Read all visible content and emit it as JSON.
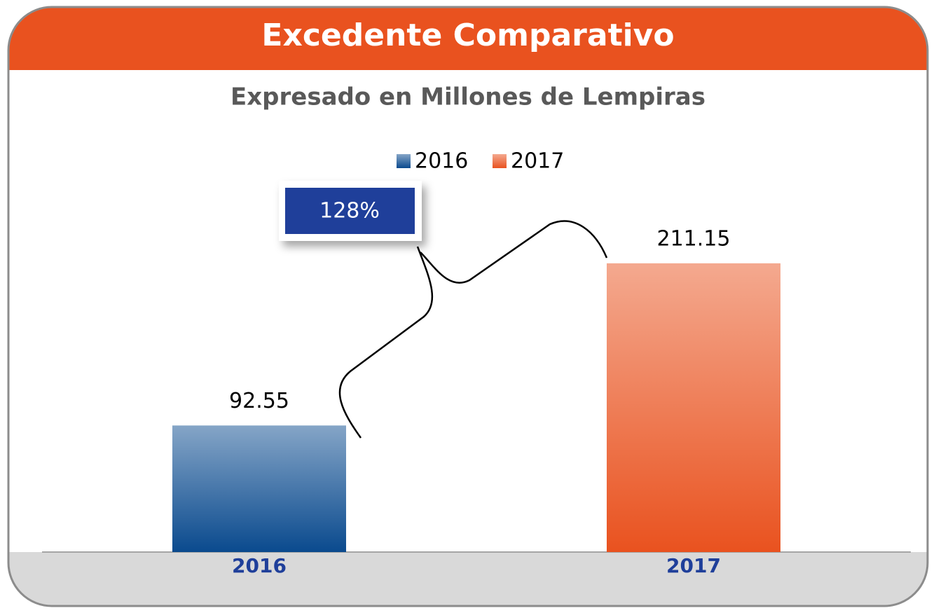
{
  "chart_data": {
    "type": "bar",
    "title": "Excedente Comparativo",
    "subtitle": "Expresado en Millones de Lempiras",
    "categories": [
      "2016",
      "2017"
    ],
    "series": [
      {
        "name": "2016",
        "color": "#0a4a8e",
        "values": [
          92.55,
          null
        ]
      },
      {
        "name": "2017",
        "color": "#e9521f",
        "values": [
          null,
          211.15
        ]
      }
    ],
    "annotation": "128%",
    "ylim": [
      0,
      250
    ],
    "legend": "top"
  }
}
